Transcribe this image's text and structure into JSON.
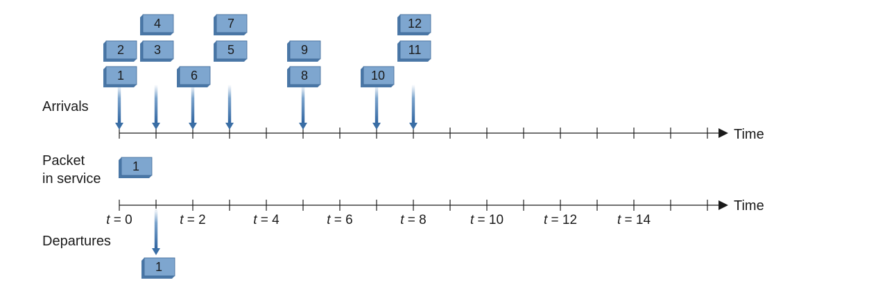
{
  "labels": {
    "arrivals": "Arrivals",
    "packet_in_service_line1": "Packet",
    "packet_in_service_line2": "in service",
    "departures": "Departures",
    "time_top": "Time",
    "time_bottom": "Time"
  },
  "time_axis": {
    "tick_count": 17,
    "tick_labels": [
      {
        "t": 0,
        "var": "t",
        "eq": " = 0"
      },
      {
        "t": 2,
        "var": "t",
        "eq": " = 2"
      },
      {
        "t": 4,
        "var": "t",
        "eq": " = 4"
      },
      {
        "t": 6,
        "var": "t",
        "eq": " = 6"
      },
      {
        "t": 8,
        "var": "t",
        "eq": " = 8"
      },
      {
        "t": 10,
        "var": "t",
        "eq": " = 10"
      },
      {
        "t": 12,
        "var": "t",
        "eq": " = 12"
      },
      {
        "t": 14,
        "var": "t",
        "eq": " = 14"
      }
    ]
  },
  "arrivals": [
    {
      "packet": "1",
      "t": 0,
      "level": 0
    },
    {
      "packet": "2",
      "t": 0,
      "level": 1
    },
    {
      "packet": "3",
      "t": 1,
      "level": 1
    },
    {
      "packet": "4",
      "t": 1,
      "level": 2
    },
    {
      "packet": "6",
      "t": 2,
      "level": 0
    },
    {
      "packet": "5",
      "t": 3,
      "level": 1
    },
    {
      "packet": "7",
      "t": 3,
      "level": 2
    },
    {
      "packet": "8",
      "t": 5,
      "level": 0
    },
    {
      "packet": "9",
      "t": 5,
      "level": 1
    },
    {
      "packet": "10",
      "t": 7,
      "level": 0
    },
    {
      "packet": "11",
      "t": 8,
      "level": 1
    },
    {
      "packet": "12",
      "t": 8,
      "level": 2
    }
  ],
  "arrival_arrow_times": [
    0,
    1,
    2,
    3,
    5,
    7,
    8
  ],
  "in_service": {
    "packet": "1",
    "t": 0
  },
  "departures": [
    {
      "packet": "1",
      "t": 1
    }
  ],
  "colors": {
    "box_fill": "#7ea6cf",
    "box_shadow": "#4a77a6",
    "box_edge": "#3e6896",
    "arrow": "#3a6ea5",
    "axis": "#1a1a1a"
  }
}
